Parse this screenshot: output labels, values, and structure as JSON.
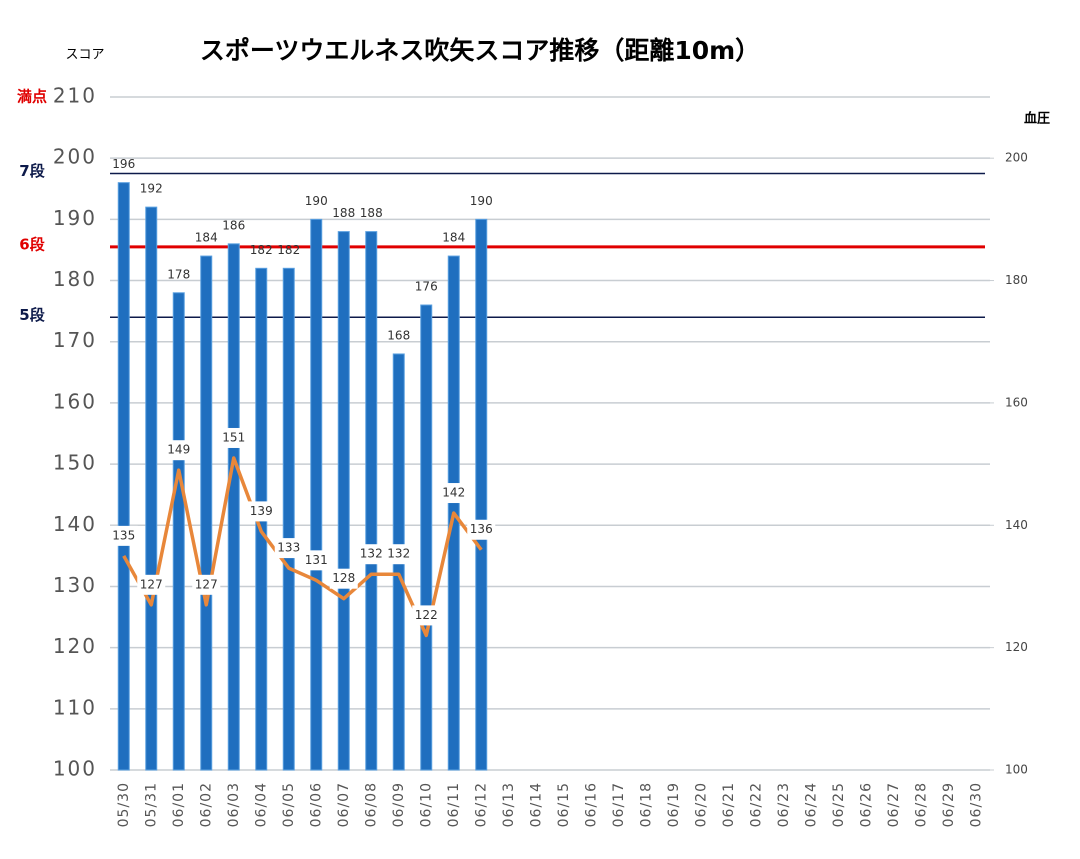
{
  "chart_data": {
    "type": "bar",
    "title": "スポーツウエルネス吹矢スコア推移（距離10m）",
    "y_label": "スコア",
    "y2_label": "血圧",
    "categories": [
      "05/30",
      "05/31",
      "06/01",
      "06/02",
      "06/03",
      "06/04",
      "06/05",
      "06/06",
      "06/07",
      "06/08",
      "06/09",
      "06/10",
      "06/11",
      "06/12",
      "06/13",
      "06/14",
      "06/15",
      "06/16",
      "06/17",
      "06/18",
      "06/19",
      "06/20",
      "06/21",
      "06/22",
      "06/23",
      "06/24",
      "06/25",
      "06/26",
      "06/27",
      "06/28",
      "06/29",
      "06/30"
    ],
    "series": [
      {
        "name": "スコア",
        "type": "bar",
        "color": "#1f6fbf",
        "values": [
          196,
          192,
          178,
          184,
          186,
          182,
          182,
          190,
          188,
          188,
          168,
          176,
          184,
          190,
          null,
          null,
          null,
          null,
          null,
          null,
          null,
          null,
          null,
          null,
          null,
          null,
          null,
          null,
          null,
          null,
          null,
          null
        ]
      },
      {
        "name": "血圧",
        "type": "line",
        "axis": "y2",
        "color": "#e8873a",
        "values": [
          135,
          127,
          149,
          127,
          151,
          139,
          133,
          131,
          128,
          132,
          132,
          122,
          142,
          136,
          null,
          null,
          null,
          null,
          null,
          null,
          null,
          null,
          null,
          null,
          null,
          null,
          null,
          null,
          null,
          null,
          null,
          null
        ]
      }
    ],
    "ylim": [
      100,
      210
    ],
    "yticks": [
      100,
      110,
      120,
      130,
      140,
      150,
      160,
      170,
      180,
      190,
      200,
      210
    ],
    "y2lim": [
      100,
      210
    ],
    "y2ticks": [
      100,
      120,
      140,
      160,
      180,
      200
    ],
    "grid": true,
    "max_label": {
      "text": "満点",
      "value": 210,
      "color": "#e00000"
    },
    "reference_lines": [
      {
        "label": "7段",
        "value": 197.5,
        "color": "#0d1a4a"
      },
      {
        "label": "6段",
        "value": 185.5,
        "color": "#e00000"
      },
      {
        "label": "5段",
        "value": 174,
        "color": "#0d1a4a"
      }
    ]
  }
}
